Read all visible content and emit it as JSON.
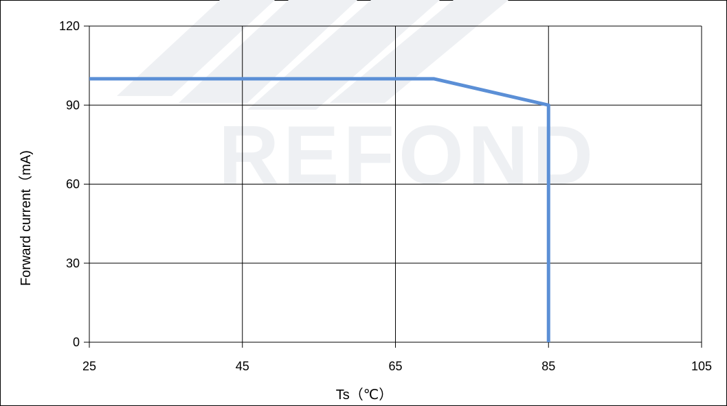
{
  "chart_data": {
    "type": "line",
    "title": "",
    "xlabel": "Ts（℃）",
    "ylabel": "Forward current（mA)",
    "xlim": [
      25,
      105
    ],
    "ylim": [
      0,
      120
    ],
    "x_ticks": [
      25,
      45,
      65,
      85,
      105
    ],
    "y_ticks": [
      0,
      30,
      60,
      90,
      120
    ],
    "grid": true,
    "legend": "none",
    "series": [
      {
        "color": "#5b8fd6",
        "points": [
          {
            "x": 25,
            "y": 100
          },
          {
            "x": 70,
            "y": 100
          },
          {
            "x": 85,
            "y": 90
          },
          {
            "x": 85,
            "y": 0
          }
        ]
      }
    ]
  },
  "watermark": {
    "text": "REFOND"
  },
  "colors": {
    "gridline": "#000000",
    "line": "#5b8fd6",
    "watermark": "#eef0f3"
  }
}
